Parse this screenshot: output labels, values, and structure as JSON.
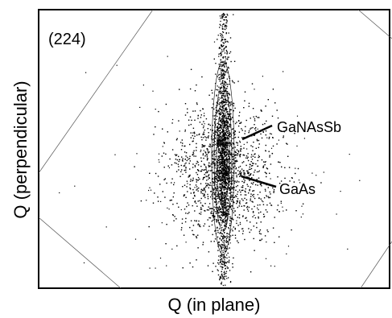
{
  "chart_data": {
    "type": "scatter",
    "panel_label": "(224)",
    "xlabel": "Q (in plane)",
    "ylabel": "Q (perpendicular)",
    "grid": false,
    "legend": "none",
    "annotations": [
      {
        "text": "GaNAsSb",
        "points_to": "upper reflection peak"
      },
      {
        "text": "GaAs",
        "points_to": "substrate reflection peak"
      }
    ],
    "x": [],
    "y": [],
    "colors": {
      "points": "#000000",
      "contours": "#000000",
      "frame": "#000000",
      "background": "#ffffff"
    }
  }
}
